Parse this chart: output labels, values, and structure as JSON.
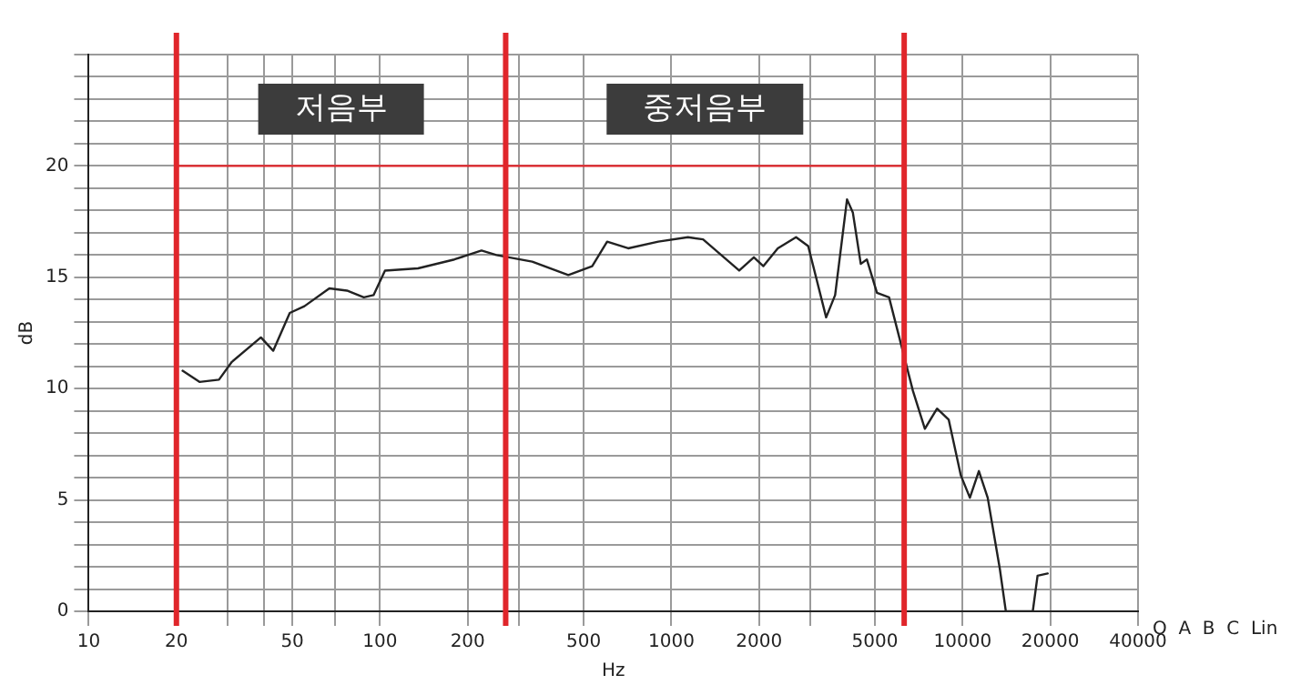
{
  "chart_data": {
    "type": "line",
    "xlabel": "Hz",
    "ylabel": "dB",
    "log": "x",
    "xlim": [
      10,
      40000
    ],
    "ylim": [
      0,
      25
    ],
    "xticks": [
      10,
      20,
      {
        "value": 30,
        "label": null
      },
      {
        "value": 40,
        "label": null
      },
      50,
      {
        "value": 70,
        "label": null
      },
      100,
      200,
      {
        "value": 300,
        "label": null
      },
      500,
      1000,
      2000,
      {
        "value": 3000,
        "label": null
      },
      5000,
      10000,
      20000,
      40000
    ],
    "yticks": [
      0,
      {
        "value": 1,
        "label": null
      },
      {
        "value": 2,
        "label": null
      },
      {
        "value": 3,
        "label": null
      },
      {
        "value": 4,
        "label": null
      },
      5,
      {
        "value": 6,
        "label": null
      },
      {
        "value": 7,
        "label": null
      },
      {
        "value": 8,
        "label": null
      },
      {
        "value": 9,
        "label": null
      },
      10,
      {
        "value": 11,
        "label": null
      },
      {
        "value": 12,
        "label": null
      },
      {
        "value": 13,
        "label": null
      },
      {
        "value": 14,
        "label": null
      },
      15,
      {
        "value": 16,
        "label": null
      },
      {
        "value": 17,
        "label": null
      },
      {
        "value": 18,
        "label": null
      },
      {
        "value": 19,
        "label": null
      },
      20,
      {
        "value": 21,
        "label": null
      },
      {
        "value": 22,
        "label": null
      },
      {
        "value": 23,
        "label": null
      },
      {
        "value": 24,
        "label": null
      },
      {
        "value": 25,
        "label": null
      }
    ],
    "grid": true,
    "legend": false,
    "marker": "none",
    "line_style": "solid",
    "series": [
      {
        "color": "#222222",
        "x": [
          21,
          24,
          28,
          31,
          39,
          43,
          49,
          55,
          67,
          77,
          88,
          95,
          104,
          135,
          180,
          223,
          251,
          333,
          443,
          535,
          602,
          711,
          902,
          1140,
          1285,
          1710,
          1920,
          2070,
          2320,
          2680,
          2950,
          3400,
          3650,
          4010,
          4200,
          4470,
          4690,
          5080,
          5590,
          6750,
          7420,
          8170,
          8960,
          9860,
          10590,
          11370,
          12190,
          13420,
          14070,
          17410,
          18080,
          19590
        ],
        "values": [
          10.8,
          10.3,
          10.4,
          11.2,
          12.3,
          11.7,
          13.4,
          13.7,
          14.5,
          14.4,
          14.1,
          14.2,
          15.3,
          15.4,
          15.8,
          16.2,
          16.0,
          15.7,
          15.1,
          15.5,
          16.6,
          16.3,
          16.6,
          16.8,
          16.7,
          15.3,
          15.9,
          15.5,
          16.3,
          16.8,
          16.4,
          13.2,
          14.2,
          18.5,
          17.9,
          15.6,
          15.8,
          14.3,
          14.1,
          9.9,
          8.2,
          9.1,
          8.6,
          6.1,
          5.1,
          6.3,
          5.1,
          1.9,
          0,
          0,
          1.6,
          1.7
        ]
      },
      {
        "type": "line",
        "color": "#e0262b",
        "x": [
          20,
          6300
        ],
        "values": [
          20,
          20
        ]
      }
    ],
    "ref_lines": [
      {
        "axis": "x",
        "value": 20,
        "color": "#e0262b"
      },
      {
        "axis": "x",
        "value": 270,
        "color": "#e0262b"
      },
      {
        "axis": "x",
        "value": 6300,
        "color": "#e0262b"
      }
    ],
    "annotations": [
      "저음부",
      "중저음부",
      "O  A  B  C  Lin"
    ]
  }
}
